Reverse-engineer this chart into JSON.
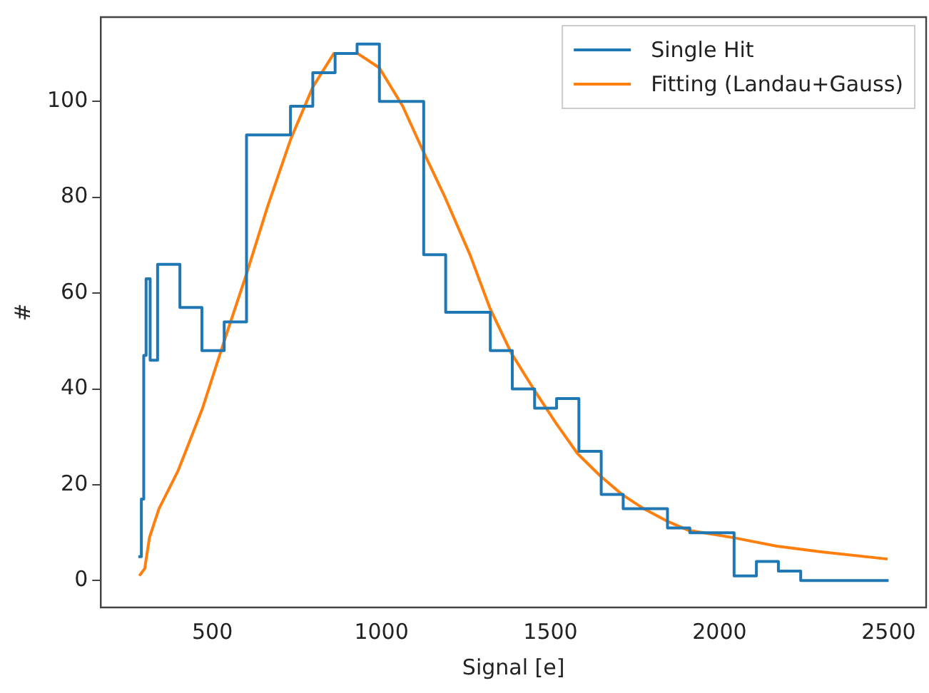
{
  "chart_data": {
    "type": "line",
    "xlabel": "Signal [e]",
    "ylabel": "#",
    "xlim": [
      170,
      2611
    ],
    "ylim": [
      -5.6,
      117.6
    ],
    "xticks": [
      500,
      1000,
      1500,
      2000,
      2500
    ],
    "yticks": [
      0,
      20,
      40,
      60,
      80,
      100
    ],
    "grid": false,
    "legend": "top right",
    "marker": "none",
    "line_style": "solid",
    "series": [
      {
        "name": "Single Hit",
        "type": "step",
        "color": "#1f77b4",
        "x": [
          281,
          290,
          297,
          304,
          316,
          338,
          404,
          469,
          535,
          601,
          731,
          797,
          863,
          928,
          994,
          1125,
          1190,
          1322,
          1387,
          1453,
          1518,
          1584,
          1650,
          1715,
          1846,
          1912,
          2043,
          2109,
          2174,
          2240,
          2500
        ],
        "values": [
          5,
          17,
          47,
          63,
          46,
          66,
          57,
          48,
          54,
          93,
          99,
          106,
          110,
          112,
          100,
          68,
          56,
          48,
          40,
          36,
          38,
          27,
          18,
          15,
          11,
          10,
          1,
          4,
          2,
          0,
          0
        ]
      },
      {
        "name": "Fitting (Landau+Gauss)",
        "type": "line",
        "color": "#ff7f0e",
        "x": [
          284,
          300,
          314,
          342,
          399,
          471,
          535,
          601,
          663,
          731,
          797,
          859,
          930,
          994,
          1063,
          1121,
          1188,
          1262,
          1320,
          1384,
          1450,
          1515,
          1580,
          1645,
          1711,
          1776,
          1842,
          1908,
          2038,
          2169,
          2300,
          2497
        ],
        "values": [
          1,
          2.5,
          9,
          15,
          23,
          36,
          50,
          64,
          78,
          92,
          103,
          110,
          110,
          107,
          99,
          90,
          80,
          68,
          57,
          47.5,
          40,
          33,
          26.5,
          22,
          18,
          15,
          12.5,
          10.5,
          9,
          7.2,
          6,
          4.5
        ]
      }
    ]
  }
}
